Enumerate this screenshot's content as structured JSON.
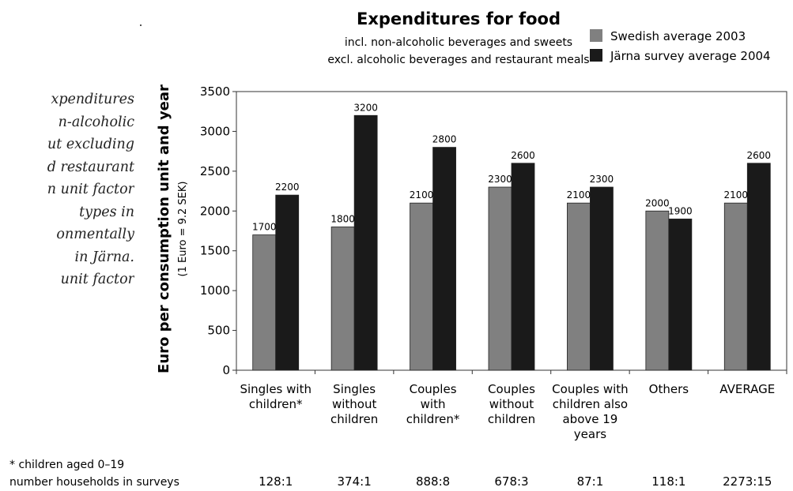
{
  "side_text": [
    "xpenditures",
    "n-alcoholic",
    "ut excluding",
    "d restaurant",
    "n unit factor",
    "types in",
    "onmentally",
    "in Järna.",
    "unit factor"
  ],
  "colors": {
    "swedish": "#808080",
    "jarna": "#1a1a1a"
  },
  "chart_data": {
    "type": "bar",
    "title": "Expenditures for food",
    "subtitle": [
      "incl. non-alcoholic beverages and sweets",
      "excl. alcoholic beverages and restaurant meals"
    ],
    "ylabel": "Euro per consumption unit and year",
    "ylabel_sub": "(1 Euro = 9.2 SEK)",
    "ylim": [
      0,
      3500
    ],
    "yticks": [
      0,
      500,
      1000,
      1500,
      2000,
      2500,
      3000,
      3500
    ],
    "legend_position": "top-right",
    "grid": false,
    "categories": [
      [
        "Singles with",
        "children*"
      ],
      [
        "Singles",
        "without",
        "children"
      ],
      [
        "Couples",
        "with",
        "children*"
      ],
      [
        "Couples",
        "without",
        "children"
      ],
      [
        "Couples with",
        "children also",
        "above 19",
        "years"
      ],
      [
        "Others"
      ],
      [
        "AVERAGE"
      ]
    ],
    "series": [
      {
        "name": "Swedish average 2003",
        "values": [
          1700,
          1800,
          2100,
          2300,
          2100,
          2000,
          2100
        ]
      },
      {
        "name": "Järna survey average 2004",
        "values": [
          2200,
          3200,
          2800,
          2600,
          2300,
          1900,
          2600
        ]
      }
    ],
    "footnote": "* children aged 0–19",
    "households_label": "number households in surveys",
    "households": [
      "128:1",
      "374:1",
      "888:8",
      "678:3",
      "87:1",
      "118:1",
      "2273:15"
    ]
  }
}
